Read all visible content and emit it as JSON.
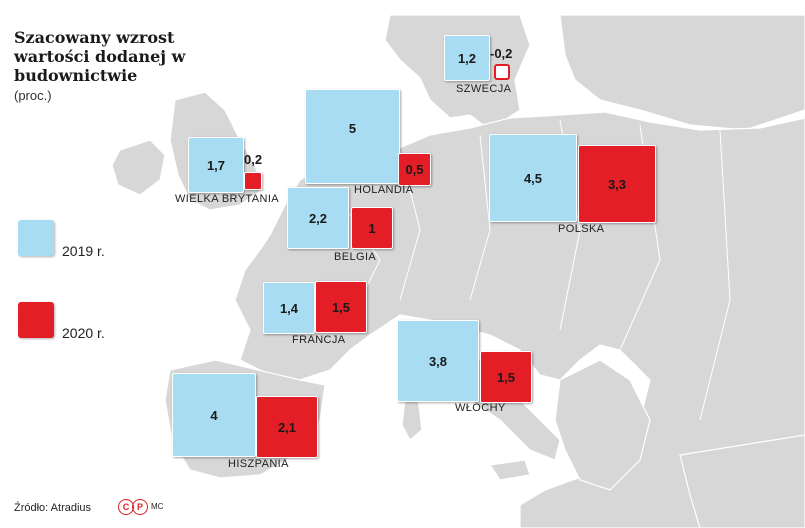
{
  "title": "Szacowany wzrost wartości dodanej w budownictwie",
  "subtitle": "(proc.)",
  "legend": [
    {
      "label": "2019 r.",
      "color": "#a7dcf2"
    },
    {
      "label": "2020 r.",
      "color": "#e41e26"
    }
  ],
  "countries": [
    {
      "name": "SZWECJA",
      "v2019": "1,2",
      "v2020": "-0,2"
    },
    {
      "name": "HOLANDIA",
      "v2019": "5",
      "v2020": "0,5"
    },
    {
      "name": "WIELKA BRYTANIA",
      "v2019": "1,7",
      "v2020": "0,2"
    },
    {
      "name": "POLSKA",
      "v2019": "4,5",
      "v2020": "3,3"
    },
    {
      "name": "BELGIA",
      "v2019": "2,2",
      "v2020": "1"
    },
    {
      "name": "FRANCJA",
      "v2019": "1,4",
      "v2020": "1,5"
    },
    {
      "name": "WŁOCHY",
      "v2019": "3,8",
      "v2020": "1,5"
    },
    {
      "name": "HISZPANIA",
      "v2019": "4",
      "v2020": "2,1"
    }
  ],
  "source": "Źródło: Atradius",
  "logo": {
    "c": "C",
    "p": "P",
    "initials": "MC"
  },
  "colors": {
    "land": "#d7d7d7",
    "sea": "#ffffff",
    "border": "#ffffff",
    "y2019": "#a7dcf2",
    "y2020": "#e41e26"
  }
}
